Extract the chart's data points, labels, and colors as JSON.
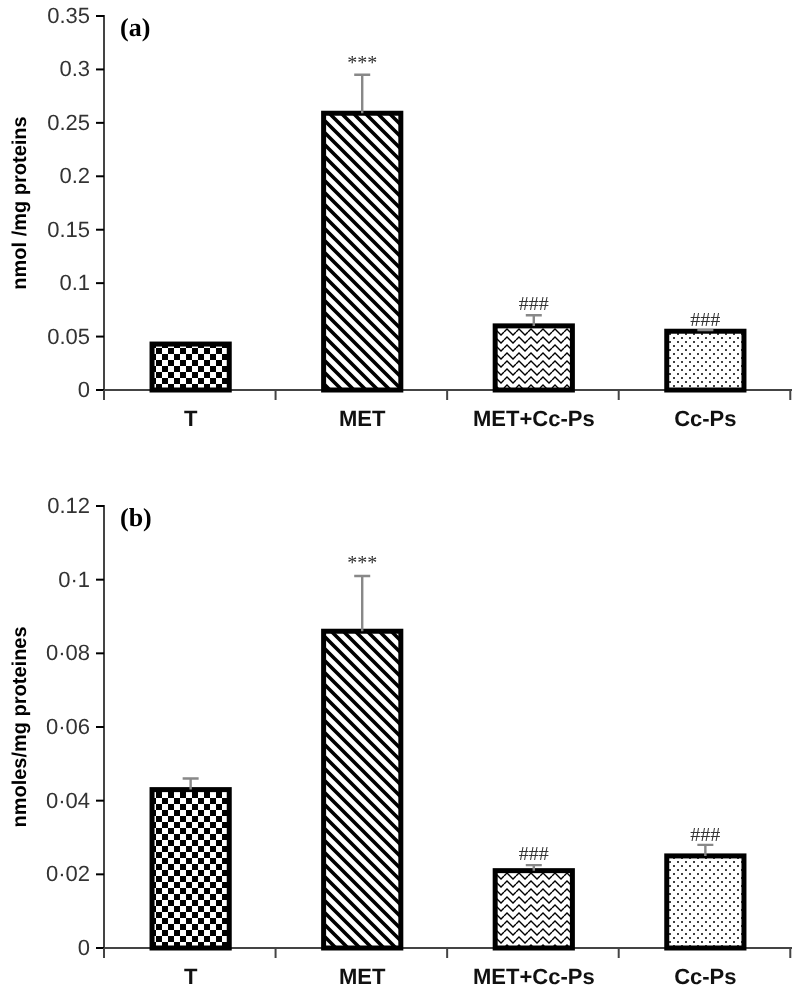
{
  "chart_data": [
    {
      "type": "bar",
      "title": "(a)",
      "ylabel": "nmol /mg proteins",
      "categories": [
        "T",
        "MET",
        "MET+Cc-Ps",
        "Cc-Ps"
      ],
      "values": [
        0.043,
        0.259,
        0.06,
        0.055
      ],
      "errors": [
        null,
        0.036,
        0.01,
        0.001
      ],
      "colors": [
        "#000000",
        "#000000",
        "#000000",
        "#000000"
      ],
      "ylim": [
        0,
        0.35
      ],
      "yticks": [
        0,
        0.05,
        0.1,
        0.15,
        0.2,
        0.25,
        0.3,
        0.35
      ],
      "annotations": [
        {
          "text": "***",
          "x": "MET",
          "y": 0.3
        },
        {
          "text": "###",
          "x": "MET+Cc-Ps",
          "y": 0.075
        },
        {
          "text": "###",
          "x": "Cc-Ps",
          "y": 0.06
        }
      ]
    },
    {
      "type": "bar",
      "title": "(b)",
      "ylabel": "nmoles/mg proteines",
      "categories": [
        "T",
        "MET",
        "MET+Cc-Ps",
        "Cc-Ps"
      ],
      "values": [
        0.043,
        0.086,
        0.021,
        0.025
      ],
      "errors": [
        0.003,
        0.015,
        0.0015,
        0.003
      ],
      "colors": [
        "#000000",
        "#000000",
        "#000000",
        "#000000"
      ],
      "ylim": [
        0,
        0.12
      ],
      "yticks": [
        0,
        {
          "value": 0.02,
          "label": "0·02"
        },
        {
          "value": 0.04,
          "label": "0·04"
        },
        {
          "value": 0.06,
          "label": "0·06"
        },
        {
          "value": 0.08,
          "label": "0·08"
        },
        {
          "value": 0.1,
          "label": "0·1"
        },
        0.12
      ],
      "annotations": [
        {
          "text": "***",
          "x": "MET",
          "y": 0.103
        },
        {
          "text": "###",
          "x": "MET+Cc-Ps",
          "y": 0.024
        },
        {
          "text": "###",
          "x": "Cc-Ps",
          "y": 0.029
        }
      ]
    }
  ]
}
